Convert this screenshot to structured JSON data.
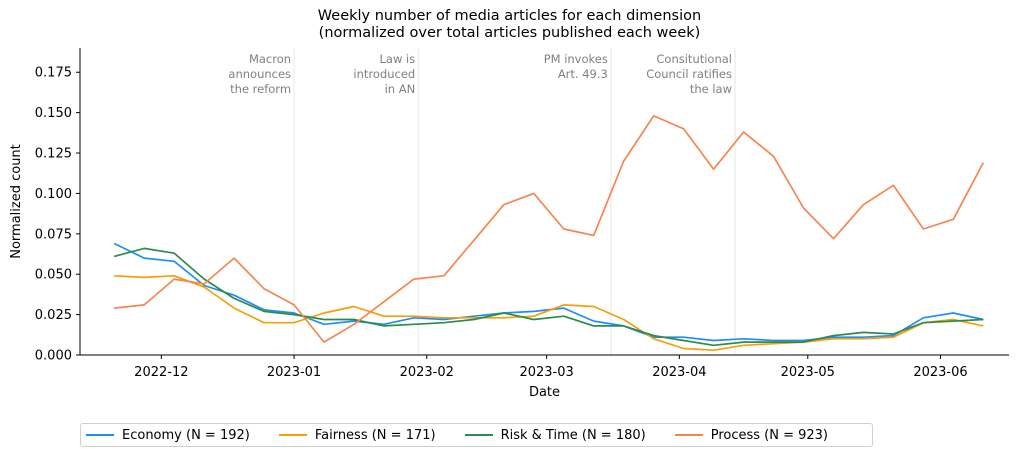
{
  "chart_data": {
    "type": "line",
    "title": "Weekly number of media articles for each dimension",
    "subtitle": "(normalized over total articles published each week)",
    "xlabel": "Date",
    "ylabel": "Normalized count",
    "xlim": [
      "2022-11-12",
      "2023-06-17"
    ],
    "ylim": [
      0,
      0.19
    ],
    "x_ticks": [
      "2022-12-01",
      "2023-01-01",
      "2023-02-01",
      "2023-03-01",
      "2023-04-01",
      "2023-05-01",
      "2023-06-01"
    ],
    "x_tick_labels": [
      "2022-12",
      "2023-01",
      "2023-02",
      "2023-03",
      "2023-04",
      "2023-05",
      "2023-06"
    ],
    "y_ticks": [
      0.0,
      0.025,
      0.05,
      0.075,
      0.1,
      0.125,
      0.15,
      0.175
    ],
    "y_tick_labels": [
      "0.000",
      "0.025",
      "0.050",
      "0.075",
      "0.100",
      "0.125",
      "0.150",
      "0.175"
    ],
    "grid": false,
    "legend_position": "bottom",
    "x": [
      "2022-11-20",
      "2022-11-27",
      "2022-12-04",
      "2022-12-11",
      "2022-12-18",
      "2022-12-25",
      "2023-01-01",
      "2023-01-08",
      "2023-01-15",
      "2023-01-22",
      "2023-01-29",
      "2023-02-05",
      "2023-02-12",
      "2023-02-19",
      "2023-02-26",
      "2023-03-05",
      "2023-03-12",
      "2023-03-19",
      "2023-03-26",
      "2023-04-02",
      "2023-04-09",
      "2023-04-16",
      "2023-04-23",
      "2023-04-30",
      "2023-05-07",
      "2023-05-14",
      "2023-05-21",
      "2023-05-28",
      "2023-06-04",
      "2023-06-11"
    ],
    "series": [
      {
        "name": "Economy (N = 192)",
        "color": "#1f8ff5",
        "values": [
          0.069,
          0.06,
          0.058,
          0.043,
          0.037,
          0.028,
          0.026,
          0.019,
          0.021,
          0.019,
          0.023,
          0.022,
          0.024,
          0.026,
          0.027,
          0.029,
          0.021,
          0.018,
          0.011,
          0.011,
          0.009,
          0.01,
          0.009,
          0.009,
          0.011,
          0.011,
          0.012,
          0.023,
          0.026,
          0.022
        ]
      },
      {
        "name": "Fairness (N = 171)",
        "color": "#f5a00a",
        "values": [
          0.049,
          0.048,
          0.049,
          0.042,
          0.029,
          0.02,
          0.02,
          0.026,
          0.03,
          0.024,
          0.024,
          0.023,
          0.023,
          0.023,
          0.024,
          0.031,
          0.03,
          0.022,
          0.01,
          0.004,
          0.003,
          0.006,
          0.007,
          0.008,
          0.01,
          0.01,
          0.011,
          0.02,
          0.022,
          0.018
        ]
      },
      {
        "name": "Risk & Time (N = 180)",
        "color": "#2e8b4a",
        "values": [
          0.061,
          0.066,
          0.063,
          0.047,
          0.035,
          0.027,
          0.025,
          0.022,
          0.022,
          0.018,
          0.019,
          0.02,
          0.022,
          0.026,
          0.022,
          0.024,
          0.018,
          0.018,
          0.012,
          0.009,
          0.006,
          0.008,
          0.008,
          0.008,
          0.012,
          0.014,
          0.013,
          0.02,
          0.021,
          0.022
        ]
      },
      {
        "name": "Process (N = 923)",
        "color": "#f5864f",
        "values": [
          0.029,
          0.031,
          0.047,
          0.044,
          0.06,
          0.041,
          0.031,
          0.008,
          0.019,
          0.033,
          0.047,
          0.049,
          0.071,
          0.093,
          0.1,
          0.078,
          0.074,
          0.12,
          0.148,
          0.14,
          0.115,
          0.138,
          0.123,
          0.091,
          0.072,
          0.093,
          0.105,
          0.078,
          0.084,
          0.119
        ]
      }
    ],
    "annotations": [
      {
        "date": "2023-01-01",
        "lines": [
          "Macron",
          "announces",
          "the reform"
        ]
      },
      {
        "date": "2023-01-30",
        "lines": [
          "Law is",
          "introduced",
          "in AN"
        ]
      },
      {
        "date": "2023-03-16",
        "lines": [
          "PM invokes",
          "Art. 49.3"
        ]
      },
      {
        "date": "2023-04-14",
        "lines": [
          "Consitutional",
          "Council ratifies",
          "the law"
        ]
      }
    ]
  }
}
